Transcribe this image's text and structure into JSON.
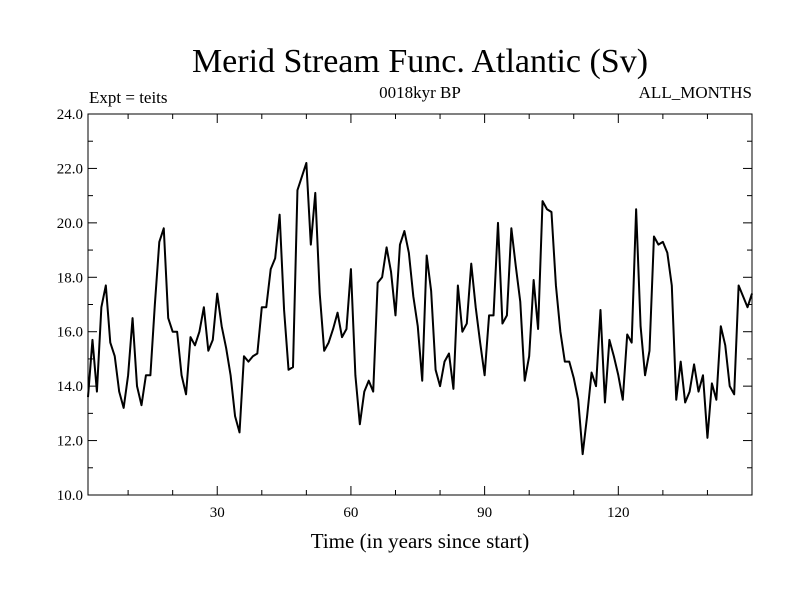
{
  "chart_data": {
    "type": "line",
    "title": "Merid Stream Func. Atlantic (Sv)",
    "subtitle_left": "Expt = teits",
    "subtitle_center": "0018kyr BP",
    "subtitle_right": "ALL_MONTHS",
    "xlabel": "Time (in years since start)",
    "ylabel": "",
    "xlim": [
      1,
      150
    ],
    "ylim": [
      10.0,
      24.0
    ],
    "x_ticks": [
      30,
      60,
      90,
      120
    ],
    "x_tick_labels": [
      "30",
      "60",
      "90",
      "120"
    ],
    "y_ticks": [
      10,
      12,
      14,
      16,
      18,
      20,
      22,
      24
    ],
    "y_tick_labels": [
      "10.0",
      "12.0",
      "14.0",
      "16.0",
      "18.0",
      "20.0",
      "22.0",
      "24.0"
    ],
    "grid": false,
    "line_color": "#000000",
    "series": [
      {
        "x": [
          1,
          2,
          3,
          4,
          5,
          6,
          7,
          8,
          9,
          10,
          11,
          12,
          13,
          14,
          15,
          16,
          17,
          18,
          19,
          20,
          21,
          22,
          23,
          24,
          25,
          26,
          27,
          28,
          29,
          30,
          31,
          32,
          33,
          34,
          35,
          36,
          37,
          38,
          39,
          40,
          41,
          42,
          43,
          44,
          45,
          46,
          47,
          48,
          49,
          50,
          51,
          52,
          53,
          54,
          55,
          56,
          57,
          58,
          59,
          60,
          61,
          62,
          63,
          64,
          65,
          66,
          67,
          68,
          69,
          70,
          71,
          72,
          73,
          74,
          75,
          76,
          77,
          78,
          79,
          80,
          81,
          82,
          83,
          84,
          85,
          86,
          87,
          88,
          89,
          90,
          91,
          92,
          93,
          94,
          95,
          96,
          97,
          98,
          99,
          100,
          101,
          102,
          103,
          104,
          105,
          106,
          107,
          108,
          109,
          110,
          111,
          112,
          113,
          114,
          115,
          116,
          117,
          118,
          119,
          120,
          121,
          122,
          123,
          124,
          125,
          126,
          127,
          128,
          129,
          130,
          131,
          132,
          133,
          134,
          135,
          136,
          137,
          138,
          139,
          140,
          141,
          142,
          143,
          144,
          145,
          146,
          147,
          148,
          149,
          150
        ],
        "values": [
          13.6,
          15.7,
          13.8,
          16.9,
          17.7,
          15.6,
          15.1,
          13.8,
          13.2,
          14.4,
          16.5,
          14.0,
          13.3,
          14.4,
          14.4,
          17.0,
          19.3,
          19.8,
          16.5,
          16.0,
          16.0,
          14.4,
          13.7,
          15.8,
          15.5,
          16.0,
          16.9,
          15.3,
          15.7,
          17.4,
          16.2,
          15.4,
          14.4,
          12.9,
          12.3,
          15.1,
          14.9,
          15.1,
          15.2,
          16.9,
          16.9,
          18.3,
          18.7,
          20.3,
          16.8,
          14.6,
          14.7,
          21.2,
          21.7,
          22.2,
          19.2,
          21.1,
          17.4,
          15.3,
          15.6,
          16.1,
          16.7,
          15.8,
          16.1,
          18.3,
          14.4,
          12.6,
          13.8,
          14.2,
          13.8,
          17.8,
          18.0,
          19.1,
          18.2,
          16.6,
          19.2,
          19.7,
          18.9,
          17.3,
          16.2,
          14.2,
          18.8,
          17.5,
          14.6,
          14.0,
          14.9,
          15.2,
          13.9,
          17.7,
          16.0,
          16.3,
          18.5,
          16.9,
          15.6,
          14.4,
          16.6,
          16.6,
          20.0,
          16.3,
          16.6,
          19.8,
          18.4,
          17.1,
          14.2,
          15.1,
          17.9,
          16.1,
          20.8,
          20.5,
          20.4,
          17.7,
          16.0,
          14.9,
          14.9,
          14.3,
          13.5,
          11.5,
          12.9,
          14.5,
          14.0,
          16.8,
          13.4,
          15.7,
          15.1,
          14.4,
          13.5,
          15.9,
          15.6,
          20.5,
          16.2,
          14.4,
          15.3,
          19.5,
          19.2,
          19.3,
          18.9,
          17.7,
          13.5,
          14.9,
          13.4,
          13.8,
          14.8,
          13.8,
          14.4,
          12.1,
          14.1,
          13.5,
          16.2,
          15.5,
          14.0,
          13.7,
          17.7,
          17.3,
          16.9,
          17.4
        ]
      }
    ]
  }
}
